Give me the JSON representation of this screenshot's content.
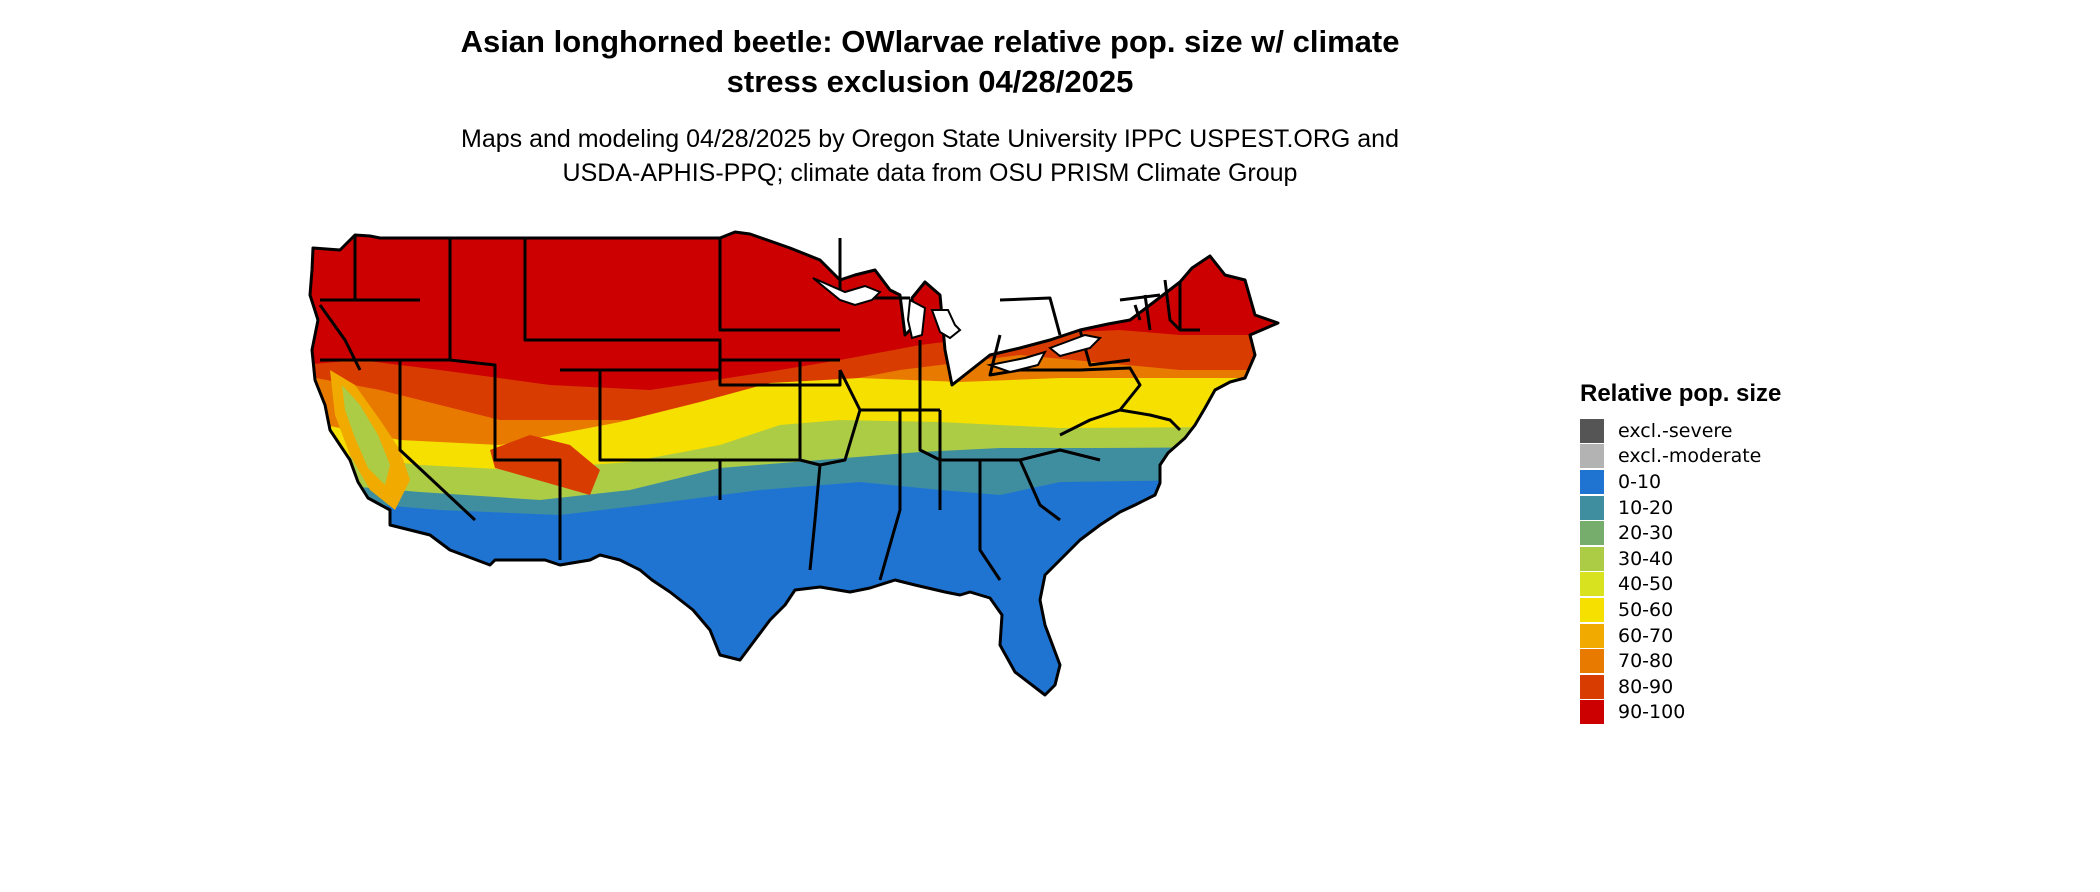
{
  "title": {
    "line1": "Asian longhorned beetle: OWlarvae relative pop. size w/ climate",
    "line2": "stress exclusion 04/28/2025"
  },
  "subtitle": {
    "line1": "Maps and modeling 04/28/2025 by Oregon State University IPPC USPEST.ORG and",
    "line2": "USDA-APHIS-PPQ; climate data from OSU PRISM Climate Group"
  },
  "map": {
    "region": "Contiguous United States",
    "dominant_class_by_area": [
      {
        "area": "northern tier",
        "class": "90-100"
      },
      {
        "area": "central transition",
        "class": "80-90"
      },
      {
        "area": "mid-south belt",
        "class": "50-60"
      },
      {
        "area": "upper south",
        "class": "30-40"
      },
      {
        "area": "coastal south",
        "class": "10-20"
      },
      {
        "area": "deep south and southwest deserts",
        "class": "0-10"
      }
    ]
  },
  "legend": {
    "title": "Relative pop. size",
    "items": [
      {
        "label": "excl.-severe",
        "color": "#555555"
      },
      {
        "label": "excl.-moderate",
        "color": "#b3b3b3"
      },
      {
        "label": "0-10",
        "color": "#1f74d1"
      },
      {
        "label": "10-20",
        "color": "#3f8ea0"
      },
      {
        "label": "20-30",
        "color": "#77ad6c"
      },
      {
        "label": "30-40",
        "color": "#adcc45"
      },
      {
        "label": "40-50",
        "color": "#d9e21f"
      },
      {
        "label": "50-60",
        "color": "#f5e000"
      },
      {
        "label": "60-70",
        "color": "#f0aa00"
      },
      {
        "label": "70-80",
        "color": "#e97a00"
      },
      {
        "label": "80-90",
        "color": "#d93c00"
      },
      {
        "label": "90-100",
        "color": "#cc0000"
      }
    ]
  }
}
